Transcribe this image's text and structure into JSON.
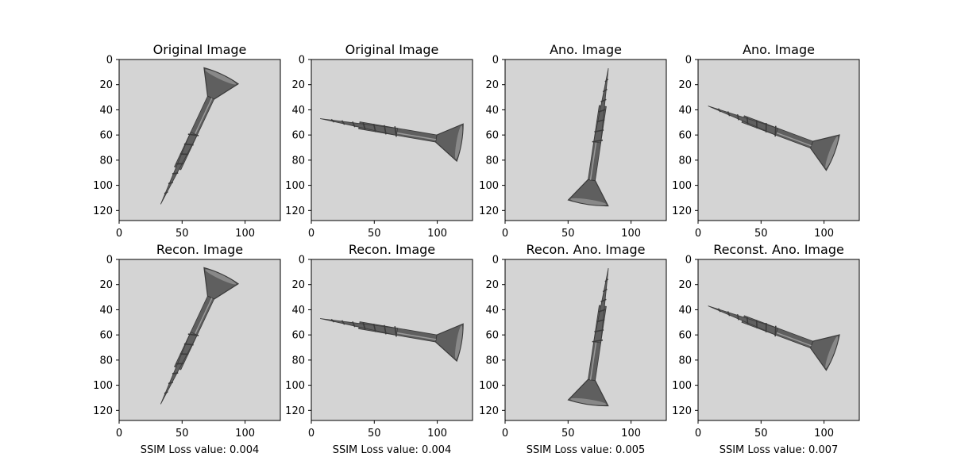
{
  "chart_data": [
    {
      "type": "image",
      "title": "Original Image",
      "xlabel": "",
      "xlim": [
        0,
        128
      ],
      "ylim": [
        128,
        0
      ],
      "xticks": [
        0,
        50,
        100
      ],
      "yticks": [
        0,
        20,
        40,
        60,
        80,
        100,
        120
      ],
      "screw": {
        "head": [
          81,
          13
        ],
        "tip": [
          33,
          115
        ],
        "head_width": 30
      }
    },
    {
      "type": "image",
      "title": "Original Image",
      "xlabel": "",
      "xlim": [
        0,
        128
      ],
      "ylim": [
        128,
        0
      ],
      "xticks": [
        0,
        50,
        100
      ],
      "yticks": [
        0,
        20,
        40,
        60,
        80,
        100,
        120
      ],
      "screw": {
        "head": [
          118,
          66
        ],
        "tip": [
          7,
          47
        ],
        "head_width": 30
      }
    },
    {
      "type": "image",
      "title": "Ano. Image",
      "xlabel": "",
      "xlim": [
        0,
        128
      ],
      "ylim": [
        128,
        0
      ],
      "xticks": [
        0,
        50,
        100
      ],
      "yticks": [
        0,
        20,
        40,
        60,
        80,
        100,
        120
      ],
      "screw": {
        "head": [
          66,
          114
        ],
        "tip": [
          82,
          7
        ],
        "head_width": 32
      }
    },
    {
      "type": "image",
      "title": "Ano. Image",
      "xlabel": "",
      "xlim": [
        0,
        128
      ],
      "ylim": [
        128,
        0
      ],
      "xticks": [
        0,
        50,
        100
      ],
      "yticks": [
        0,
        20,
        40,
        60,
        80,
        100,
        120
      ],
      "screw": {
        "head": [
          107,
          74
        ],
        "tip": [
          8,
          37
        ],
        "head_width": 30
      }
    },
    {
      "type": "image",
      "title": "Recon. Image",
      "xlabel": "SSIM Loss value: 0.004",
      "xlim": [
        0,
        128
      ],
      "ylim": [
        128,
        0
      ],
      "xticks": [
        0,
        50,
        100
      ],
      "yticks": [
        0,
        20,
        40,
        60,
        80,
        100,
        120
      ],
      "screw": {
        "head": [
          81,
          13
        ],
        "tip": [
          33,
          115
        ],
        "head_width": 30
      }
    },
    {
      "type": "image",
      "title": "Recon. Image",
      "xlabel": "SSIM Loss value: 0.004",
      "xlim": [
        0,
        128
      ],
      "ylim": [
        128,
        0
      ],
      "xticks": [
        0,
        50,
        100
      ],
      "yticks": [
        0,
        20,
        40,
        60,
        80,
        100,
        120
      ],
      "screw": {
        "head": [
          118,
          66
        ],
        "tip": [
          7,
          47
        ],
        "head_width": 30
      }
    },
    {
      "type": "image",
      "title": "Recon. Ano. Image",
      "xlabel": "SSIM Loss value: 0.005",
      "xlim": [
        0,
        128
      ],
      "ylim": [
        128,
        0
      ],
      "xticks": [
        0,
        50,
        100
      ],
      "yticks": [
        0,
        20,
        40,
        60,
        80,
        100,
        120
      ],
      "screw": {
        "head": [
          66,
          114
        ],
        "tip": [
          82,
          7
        ],
        "head_width": 32
      }
    },
    {
      "type": "image",
      "title": "Reconst. Ano. Image",
      "xlabel": "SSIM Loss value: 0.007",
      "xlim": [
        0,
        128
      ],
      "ylim": [
        128,
        0
      ],
      "xticks": [
        0,
        50,
        100
      ],
      "yticks": [
        0,
        20,
        40,
        60,
        80,
        100,
        120
      ],
      "screw": {
        "head": [
          107,
          74
        ],
        "tip": [
          8,
          37
        ],
        "head_width": 30
      }
    }
  ],
  "colors": {
    "background": "#d4d4d4",
    "screw": "#5f5f5f",
    "screw_dark": "#3a3a3a",
    "screw_light": "#9a9a9a"
  }
}
